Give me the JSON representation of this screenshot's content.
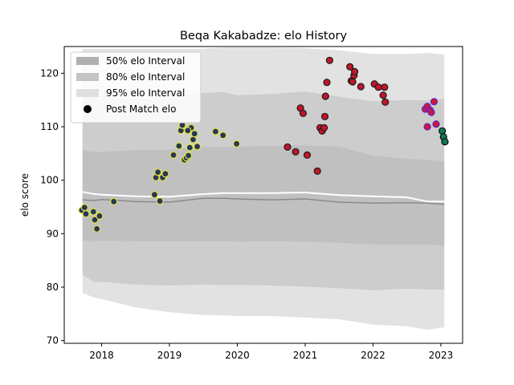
{
  "chart_data": {
    "type": "scatter",
    "title": "Beqa Kakabadze: elo History",
    "xlabel": "",
    "ylabel": "elo score",
    "xlim": [
      2017.45,
      2023.32
    ],
    "ylim": [
      69.5,
      125.0
    ],
    "x_ticks": [
      2018,
      2019,
      2020,
      2021,
      2022,
      2023
    ],
    "x_tick_labels": [
      "2018",
      "2019",
      "2020",
      "2021",
      "2022",
      "2023"
    ],
    "y_ticks": [
      70,
      80,
      90,
      100,
      110,
      120
    ],
    "y_tick_labels": [
      "70",
      "80",
      "90",
      "100",
      "110",
      "120"
    ],
    "legend_position": "top-left",
    "legend": [
      {
        "label": "50% elo Interval",
        "kind": "band",
        "color": "#b0b0b0"
      },
      {
        "label": "80% elo Interval",
        "kind": "band",
        "color": "#c4c4c4"
      },
      {
        "label": "95% elo Interval",
        "kind": "band",
        "color": "#e0e0e0"
      },
      {
        "label": "Post Match elo",
        "kind": "marker",
        "color": "#000000"
      }
    ],
    "bands": {
      "x": [
        2017.72,
        2017.9,
        2018.0,
        2018.5,
        2019.0,
        2019.5,
        2019.8,
        2020.0,
        2020.5,
        2021.0,
        2021.5,
        2022.0,
        2022.5,
        2022.8,
        2023.05
      ],
      "p95_upper": [
        124.5,
        124.5,
        124.5,
        124.5,
        124.5,
        124.6,
        124.8,
        124.8,
        124.8,
        124.7,
        124.3,
        123.6,
        123.6,
        123.8,
        123.5
      ],
      "p95_lower": [
        78.9,
        78.0,
        77.8,
        76.2,
        75.3,
        74.8,
        74.7,
        74.6,
        74.6,
        74.3,
        74.0,
        73.0,
        72.7,
        72.0,
        72.5
      ],
      "p80_upper": [
        115.8,
        115.4,
        115.3,
        115.3,
        115.6,
        116.3,
        116.5,
        115.9,
        116.1,
        116.6,
        115.6,
        114.8,
        115.0,
        114.9,
        115.2
      ],
      "p80_lower": [
        82.3,
        80.9,
        81.0,
        80.5,
        80.3,
        80.5,
        80.4,
        80.4,
        80.3,
        80.1,
        79.8,
        79.4,
        79.7,
        79.6,
        79.5
      ],
      "p50_upper": [
        105.6,
        105.3,
        105.3,
        105.6,
        105.7,
        106.3,
        106.2,
        106.3,
        106.4,
        106.5,
        106.3,
        104.6,
        104.0,
        103.8,
        103.5
      ],
      "p50_lower": [
        88.7,
        88.6,
        88.7,
        88.6,
        88.6,
        88.6,
        88.6,
        88.5,
        88.6,
        88.5,
        88.3,
        88.0,
        88.0,
        88.0,
        87.7
      ],
      "median": [
        96.3,
        96.2,
        96.4,
        96.0,
        95.9,
        96.6,
        96.6,
        96.5,
        96.3,
        96.5,
        95.9,
        95.7,
        95.8,
        95.7,
        95.5
      ],
      "mean": [
        97.8,
        97.4,
        97.3,
        97.0,
        96.9,
        97.4,
        97.6,
        97.6,
        97.6,
        97.7,
        97.2,
        97.0,
        96.8,
        96.0,
        96.0
      ]
    },
    "series": [
      {
        "fill": "#253858",
        "edge": "#e4e43a",
        "points": [
          [
            2017.71,
            94.4
          ],
          [
            2017.75,
            94.9
          ],
          [
            2017.77,
            93.7
          ],
          [
            2017.88,
            94.1
          ],
          [
            2017.9,
            92.6
          ],
          [
            2017.93,
            90.9
          ],
          [
            2017.97,
            93.3
          ],
          [
            2018.18,
            96.0
          ],
          [
            2018.78,
            97.3
          ],
          [
            2018.8,
            100.5
          ],
          [
            2018.83,
            101.5
          ],
          [
            2018.86,
            96.1
          ],
          [
            2018.9,
            100.5
          ],
          [
            2018.94,
            101.2
          ],
          [
            2019.06,
            104.7
          ],
          [
            2019.14,
            106.4
          ],
          [
            2019.17,
            109.3
          ],
          [
            2019.19,
            110.3
          ],
          [
            2019.22,
            103.8
          ],
          [
            2019.25,
            104.2
          ],
          [
            2019.28,
            104.6
          ],
          [
            2019.3,
            106.1
          ],
          [
            2019.32,
            109.8
          ],
          [
            2019.35,
            107.6
          ],
          [
            2019.37,
            108.7
          ],
          [
            2019.41,
            106.3
          ],
          [
            2019.27,
            109.3
          ],
          [
            2019.68,
            109.1
          ],
          [
            2019.79,
            108.4
          ],
          [
            2019.99,
            106.8
          ]
        ]
      },
      {
        "fill": "#c0162c",
        "edge": "#1a1a1a",
        "points": [
          [
            2020.74,
            106.2
          ],
          [
            2020.86,
            105.3
          ],
          [
            2020.93,
            113.5
          ],
          [
            2020.97,
            112.5
          ],
          [
            2021.03,
            104.7
          ],
          [
            2021.18,
            101.7
          ],
          [
            2021.22,
            109.8
          ],
          [
            2021.25,
            109.2
          ],
          [
            2021.28,
            109.8
          ],
          [
            2021.29,
            111.9
          ],
          [
            2021.3,
            115.7
          ],
          [
            2021.32,
            118.3
          ],
          [
            2021.36,
            122.4
          ],
          [
            2021.66,
            121.2
          ],
          [
            2021.68,
            118.6
          ],
          [
            2021.7,
            118.4
          ],
          [
            2021.72,
            119.6
          ],
          [
            2021.73,
            120.3
          ],
          [
            2021.82,
            117.5
          ],
          [
            2022.02,
            118.0
          ],
          [
            2022.08,
            117.4
          ],
          [
            2022.15,
            115.9
          ],
          [
            2022.17,
            117.4
          ],
          [
            2022.18,
            114.6
          ]
        ]
      },
      {
        "fill": "#d0143a",
        "edge": "#5a28c8",
        "points": [
          [
            2022.77,
            113.3
          ],
          [
            2022.8,
            113.8
          ],
          [
            2022.8,
            110.0
          ],
          [
            2022.84,
            113.1
          ],
          [
            2022.86,
            112.7
          ],
          [
            2022.9,
            114.7
          ],
          [
            2022.93,
            110.5
          ]
        ]
      },
      {
        "fill": "#127a5a",
        "edge": "#0a0a0a",
        "points": [
          [
            2023.02,
            109.2
          ],
          [
            2023.04,
            108.1
          ],
          [
            2023.06,
            107.2
          ]
        ]
      }
    ]
  }
}
